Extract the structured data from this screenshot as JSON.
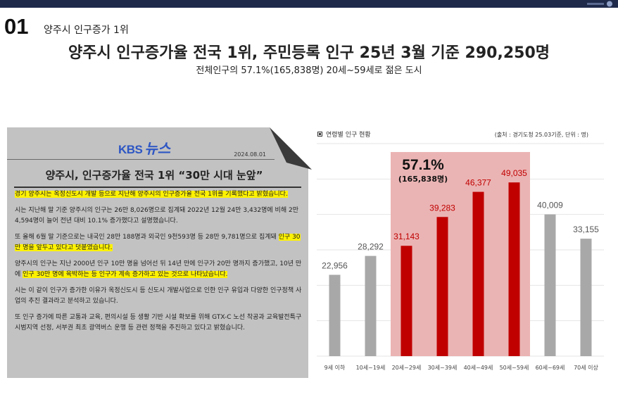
{
  "header": {
    "section_number": "01",
    "section_title": "양주시 인구증가 1위",
    "main_title": "양주시 인구증가율 전국 1위, 주민등록 인구 25년 3월 기준 290,250명",
    "subtitle": "전체인구의 57.1%(165,838명) 20세~59세로 젊은 도시"
  },
  "news": {
    "brand_kbs": "KBS",
    "brand_news": "뉴스",
    "date": "2024.08.01",
    "headline": "양주시, 인구증가율 전국 1위 “30만 시대 눈앞”",
    "p1_hl": "경기 양주시는 옥정신도시 개발 등으로 지난해 양주시의 인구증가율 전국 1위를 기록했다고 밝혔습니다.",
    "p2": "시는 지난해 말 기준 양주시의 인구는 26만 8,026명으로 집계돼 2022년 12월 24만 3,432명에 비해 2만 4,594명이 늘어 전년 대비 10.1% 증가했다고 설명했습니다.",
    "p3_a": "또 올해 6월 말 기준으로는 내국인 28만 188명과 외국인 9천593명 등 28만 9,781명으로 집계돼 ",
    "p3_hl": "인구 30만 명을 앞두고 있다고 덧붙였습니다.",
    "p4_a": "양주시의 인구는 지난 2000년 인구 10만 명을 넘어선 뒤 14년 만에 인구가 20만 명까지 증가했고, 10년 만에 ",
    "p4_hl": "인구 30만 명에 육박하는 등 인구가 계속 증가하고 있는 것으로 나타났습니다.",
    "p5": "시는 이 같이 인구가 증가한 이유가 옥정신도시 등 신도시 개발사업으로 인한 인구 유입과 다양한 인구정책 사업의 추진 결과라고 분석하고 있습니다.",
    "p6": "또 인구 증가에 따른 교통과 교육, 편의시설 등 생활 기반 시설 확보를 위해 GTX-C 노선 착공과 교육발전특구 시범지역 선정, 서부권 최초 광역버스 운행 등 관련 정책을 추진하고 있다고 밝혔습니다."
  },
  "chart_header": {
    "title": "연령별 인구 현황",
    "source": "(출처 : 경기도청 25.03기준, 단위 : 명)"
  },
  "chart_data": {
    "type": "bar",
    "categories": [
      "9세 이하",
      "10세~19세",
      "20세~29세",
      "30세~39세",
      "40세~49세",
      "50세~59세",
      "60세~69세",
      "70세 이상"
    ],
    "values": [
      22956,
      28292,
      31143,
      39283,
      46377,
      49035,
      40009,
      33155
    ],
    "value_labels": [
      "22,956",
      "28,292",
      "31,143",
      "39,283",
      "46,377",
      "49,035",
      "40,009",
      "33,155"
    ],
    "highlight_indices": [
      2,
      3,
      4,
      5
    ],
    "highlight_annotation": "57.1%",
    "highlight_annotation_sub": "(165,838명)",
    "ylim": [
      0,
      60000
    ],
    "grid": true,
    "colors": {
      "normal": "#a8a8a8",
      "highlight": "#c00000",
      "band": "#ebb4b4",
      "normal_label": "#555555",
      "highlight_label": "#c00000",
      "grid": "#e4e4e4"
    }
  }
}
